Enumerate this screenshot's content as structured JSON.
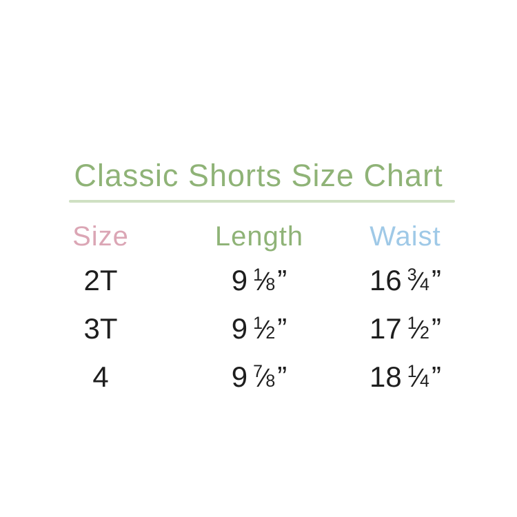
{
  "styles": {
    "background": "#ffffff",
    "title_color": "#8fb377",
    "divider_color": "#cfe0c3",
    "size_header_color": "#dba6b5",
    "length_header_color": "#8fb377",
    "waist_header_color": "#9fc9e7",
    "body_text_color": "#1e1e1e"
  },
  "chart_data": {
    "type": "table",
    "title": "Classic Shorts Size Chart",
    "columns": [
      "Size",
      "Length",
      "Waist"
    ],
    "unit_mark": "”",
    "fraction_slash": "⁄",
    "rows": [
      {
        "size": "2T",
        "length": {
          "whole": "9",
          "numerator": "1",
          "denominator": "8",
          "display": "9 1/8”"
        },
        "waist": {
          "whole": "16",
          "numerator": "3",
          "denominator": "4",
          "display": "16 3/4”"
        }
      },
      {
        "size": "3T",
        "length": {
          "whole": "9",
          "numerator": "1",
          "denominator": "2",
          "display": "9 1/2”"
        },
        "waist": {
          "whole": "17",
          "numerator": "1",
          "denominator": "2",
          "display": "17 1/2”"
        }
      },
      {
        "size": "4",
        "length": {
          "whole": "9",
          "numerator": "7",
          "denominator": "8",
          "display": "9 7/8”"
        },
        "waist": {
          "whole": "18",
          "numerator": "1",
          "denominator": "4",
          "display": "18 1/4”"
        }
      }
    ]
  }
}
